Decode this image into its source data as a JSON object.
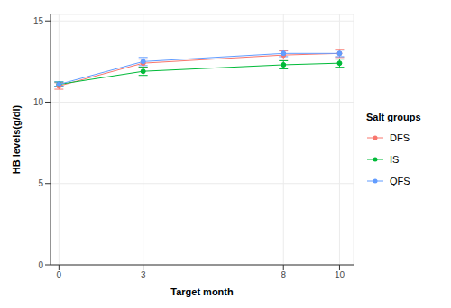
{
  "chart_data": {
    "type": "line",
    "x_label": "Target month",
    "y_label": "HB levels(g/dl)",
    "legend_title": "Salt groups",
    "x": [
      0,
      3,
      8,
      10
    ],
    "series": [
      {
        "name": "DFS",
        "color": "#F8766D",
        "marker": "circle",
        "values": [
          11.0,
          12.4,
          12.9,
          13.0
        ],
        "errors": [
          0.2,
          0.25,
          0.25,
          0.25
        ]
      },
      {
        "name": "IS",
        "color": "#00BA38",
        "marker": "circle",
        "values": [
          11.1,
          11.9,
          12.3,
          12.4
        ],
        "errors": [
          0.15,
          0.25,
          0.25,
          0.25
        ]
      },
      {
        "name": "QFS",
        "color": "#619CFF",
        "marker": "circle",
        "values": [
          11.1,
          12.5,
          13.0,
          13.0
        ],
        "errors": [
          0.15,
          0.25,
          0.2,
          0.2
        ]
      }
    ],
    "xlim": [
      -0.3,
      10.5
    ],
    "xticks": [
      0,
      3,
      8,
      10
    ],
    "ylim": [
      0,
      15.4
    ],
    "yticks": [
      0,
      5,
      10,
      15
    ],
    "grid": true,
    "legend": "right"
  }
}
